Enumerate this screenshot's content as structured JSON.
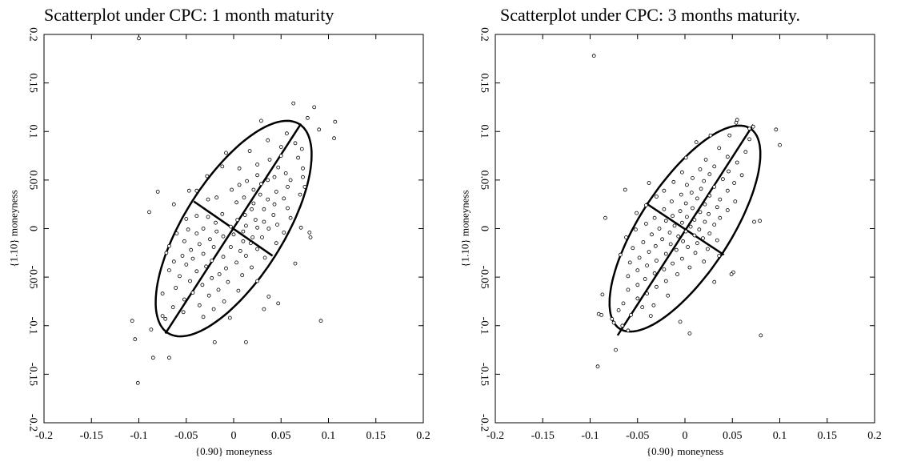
{
  "chart_data": [
    {
      "type": "scatter",
      "title": "Scatterplot under CPC: 1 month maturity",
      "xlabel": "{0.90} moneyness",
      "ylabel": "{1.10} moneyness",
      "xlim": [
        -0.2,
        0.2
      ],
      "ylim": [
        -0.2,
        0.2
      ],
      "xticks": [
        "-0.2",
        "-0.15",
        "-0.1",
        "-0.05",
        "0",
        "0.05",
        "0.1",
        "0.15",
        "0.2"
      ],
      "yticks": [
        "-0.2",
        "-0.15",
        "-0.1",
        "-0.05",
        "0",
        "0.05",
        "0.1",
        "0.15",
        "0.2"
      ],
      "grid": false,
      "ellipse": {
        "center": [
          0.0,
          0.0
        ],
        "axis_angle_deg": 57,
        "major_semi_axis": 0.128,
        "minor_semi_axis": 0.052
      },
      "principal_axes": [
        [
          [
            -0.072,
            -0.108
          ],
          [
            0.071,
            0.108
          ]
        ],
        [
          [
            -0.042,
            0.028
          ],
          [
            0.041,
            -0.028
          ]
        ]
      ],
      "points": [
        [
          -0.1,
          0.196
        ],
        [
          0.063,
          0.129
        ],
        [
          0.085,
          0.125
        ],
        [
          0.078,
          0.114
        ],
        [
          0.029,
          0.111
        ],
        [
          0.107,
          0.11
        ],
        [
          0.09,
          0.102
        ],
        [
          0.056,
          0.098
        ],
        [
          0.106,
          0.093
        ],
        [
          0.065,
          0.088
        ],
        [
          0.036,
          0.091
        ],
        [
          0.05,
          0.084
        ],
        [
          0.072,
          0.082
        ],
        [
          -0.008,
          0.078
        ],
        [
          0.017,
          0.08
        ],
        [
          0.05,
          0.075
        ],
        [
          0.068,
          0.073
        ],
        [
          0.038,
          0.071
        ],
        [
          0.047,
          0.063
        ],
        [
          0.073,
          0.062
        ],
        [
          -0.012,
          0.064
        ],
        [
          0.025,
          0.066
        ],
        [
          0.006,
          0.062
        ],
        [
          0.055,
          0.057
        ],
        [
          0.025,
          0.055
        ],
        [
          0.043,
          0.053
        ],
        [
          0.073,
          0.053
        ],
        [
          0.036,
          0.05
        ],
        [
          0.06,
          0.05
        ],
        [
          0.014,
          0.049
        ],
        [
          -0.028,
          0.054
        ],
        [
          0.006,
          0.045
        ],
        [
          0.029,
          0.046
        ],
        [
          0.057,
          0.043
        ],
        [
          0.075,
          0.043
        ],
        [
          -0.002,
          0.04
        ],
        [
          0.021,
          0.04
        ],
        [
          0.045,
          0.038
        ],
        [
          -0.039,
          0.039
        ],
        [
          -0.047,
          0.039
        ],
        [
          -0.08,
          0.038
        ],
        [
          0.028,
          0.035
        ],
        [
          0.07,
          0.035
        ],
        [
          0.011,
          0.032
        ],
        [
          -0.018,
          0.032
        ],
        [
          0.036,
          0.03
        ],
        [
          0.053,
          0.031
        ],
        [
          -0.027,
          0.03
        ],
        [
          0.003,
          0.027
        ],
        [
          0.021,
          0.026
        ],
        [
          0.043,
          0.025
        ],
        [
          -0.063,
          0.025
        ],
        [
          0.019,
          0.02
        ],
        [
          0.032,
          0.02
        ],
        [
          0.057,
          0.021
        ],
        [
          -0.089,
          0.017
        ],
        [
          -0.012,
          0.015
        ],
        [
          0.012,
          0.014
        ],
        [
          0.042,
          0.014
        ],
        [
          -0.039,
          0.013
        ],
        [
          -0.027,
          0.012
        ],
        [
          0.004,
          0.009
        ],
        [
          0.023,
          0.009
        ],
        [
          0.06,
          0.011
        ],
        [
          -0.05,
          0.01
        ],
        [
          0.032,
          0.007
        ],
        [
          -0.019,
          0.006
        ],
        [
          0.046,
          0.004
        ],
        [
          0.013,
          0.003
        ],
        [
          -0.003,
          0.002
        ],
        [
          0.071,
          0.001
        ],
        [
          -0.032,
          0.0
        ],
        [
          0.025,
          0.001
        ],
        [
          0.037,
          0.0
        ],
        [
          -0.048,
          -0.001
        ],
        [
          0.01,
          -0.003
        ],
        [
          -0.018,
          -0.003
        ],
        [
          0.053,
          -0.004
        ],
        [
          0.08,
          -0.004
        ],
        [
          -0.06,
          -0.005
        ],
        [
          -0.039,
          -0.005
        ],
        [
          0.0,
          -0.006
        ],
        [
          0.02,
          -0.009
        ],
        [
          -0.011,
          -0.008
        ],
        [
          0.03,
          -0.009
        ],
        [
          0.081,
          -0.009
        ],
        [
          -0.025,
          -0.011
        ],
        [
          -0.052,
          -0.013
        ],
        [
          0.01,
          -0.013
        ],
        [
          -0.036,
          -0.016
        ],
        [
          0.018,
          -0.015
        ],
        [
          0.045,
          -0.015
        ],
        [
          -0.068,
          -0.018
        ],
        [
          -0.003,
          -0.019
        ],
        [
          -0.021,
          -0.019
        ],
        [
          0.025,
          -0.021
        ],
        [
          -0.045,
          -0.022
        ],
        [
          0.007,
          -0.023
        ],
        [
          -0.071,
          -0.025
        ],
        [
          -0.032,
          -0.026
        ],
        [
          -0.054,
          -0.028
        ],
        [
          0.013,
          -0.028
        ],
        [
          -0.011,
          -0.029
        ],
        [
          0.033,
          -0.03
        ],
        [
          -0.043,
          -0.031
        ],
        [
          -0.023,
          -0.033
        ],
        [
          -0.063,
          -0.034
        ],
        [
          0.003,
          -0.035
        ],
        [
          0.065,
          -0.036
        ],
        [
          -0.05,
          -0.037
        ],
        [
          -0.029,
          -0.039
        ],
        [
          0.019,
          -0.04
        ],
        [
          -0.008,
          -0.041
        ],
        [
          -0.068,
          -0.043
        ],
        [
          -0.039,
          -0.044
        ],
        [
          -0.015,
          -0.047
        ],
        [
          0.009,
          -0.048
        ],
        [
          -0.057,
          -0.049
        ],
        [
          -0.023,
          -0.051
        ],
        [
          -0.046,
          -0.054
        ],
        [
          -0.006,
          -0.055
        ],
        [
          0.025,
          -0.054
        ],
        [
          -0.033,
          -0.058
        ],
        [
          -0.061,
          -0.061
        ],
        [
          -0.016,
          -0.063
        ],
        [
          0.005,
          -0.064
        ],
        [
          -0.043,
          -0.066
        ],
        [
          -0.075,
          -0.067
        ],
        [
          -0.026,
          -0.069
        ],
        [
          0.037,
          -0.07
        ],
        [
          -0.052,
          -0.073
        ],
        [
          -0.01,
          -0.075
        ],
        [
          0.047,
          -0.077
        ],
        [
          -0.036,
          -0.079
        ],
        [
          -0.064,
          -0.081
        ],
        [
          -0.021,
          -0.083
        ],
        [
          0.032,
          -0.083
        ],
        [
          -0.053,
          -0.086
        ],
        [
          -0.075,
          -0.09
        ],
        [
          -0.032,
          -0.091
        ],
        [
          -0.004,
          -0.092
        ],
        [
          -0.072,
          -0.093
        ],
        [
          -0.107,
          -0.095
        ],
        [
          0.092,
          -0.095
        ],
        [
          -0.087,
          -0.104
        ],
        [
          -0.104,
          -0.114
        ],
        [
          -0.02,
          -0.117
        ],
        [
          0.013,
          -0.117
        ],
        [
          -0.068,
          -0.133
        ],
        [
          -0.085,
          -0.133
        ],
        [
          -0.101,
          -0.159
        ]
      ]
    },
    {
      "type": "scatter",
      "title": "Scatterplot under CPC: 3 months maturity.",
      "xlabel": "{0.90} moneyness",
      "ylabel": "{1.10} moneyness",
      "xlim": [
        -0.2,
        0.2
      ],
      "ylim": [
        -0.2,
        0.2
      ],
      "xticks": [
        "-0.2",
        "-0.15",
        "-0.1",
        "-0.05",
        "0",
        "0.05",
        "0.1",
        "0.15",
        "0.2"
      ],
      "yticks": [
        "-0.2",
        "-0.15",
        "-0.1",
        "-0.05",
        "0",
        "0.05",
        "0.1",
        "0.15",
        "0.2"
      ],
      "grid": false,
      "ellipse": {
        "center": [
          0.0,
          0.0
        ],
        "axis_angle_deg": 56,
        "major_semi_axis": 0.124,
        "minor_semi_axis": 0.047
      },
      "principal_axes": [
        [
          [
            -0.071,
            -0.11
          ],
          [
            0.072,
            0.107
          ]
        ],
        [
          [
            -0.041,
            0.026
          ],
          [
            0.041,
            -0.027
          ]
        ]
      ],
      "points": [
        [
          -0.096,
          0.178
        ],
        [
          0.055,
          0.112
        ],
        [
          0.054,
          0.109
        ],
        [
          0.072,
          0.105
        ],
        [
          0.068,
          0.103
        ],
        [
          0.096,
          0.102
        ],
        [
          0.027,
          0.096
        ],
        [
          0.047,
          0.096
        ],
        [
          0.068,
          0.092
        ],
        [
          0.012,
          0.089
        ],
        [
          0.1,
          0.086
        ],
        [
          0.036,
          0.083
        ],
        [
          0.064,
          0.079
        ],
        [
          0.045,
          0.074
        ],
        [
          0.001,
          0.073
        ],
        [
          0.022,
          0.071
        ],
        [
          0.055,
          0.068
        ],
        [
          0.031,
          0.064
        ],
        [
          0.016,
          0.061
        ],
        [
          0.046,
          0.059
        ],
        [
          -0.003,
          0.058
        ],
        [
          0.026,
          0.056
        ],
        [
          0.06,
          0.055
        ],
        [
          0.008,
          0.052
        ],
        [
          0.04,
          0.051
        ],
        [
          0.02,
          0.049
        ],
        [
          -0.012,
          0.048
        ],
        [
          0.052,
          0.047
        ],
        [
          -0.038,
          0.047
        ],
        [
          0.002,
          0.045
        ],
        [
          0.031,
          0.043
        ],
        [
          0.017,
          0.041
        ],
        [
          -0.063,
          0.04
        ],
        [
          -0.022,
          0.039
        ],
        [
          0.045,
          0.039
        ],
        [
          0.007,
          0.037
        ],
        [
          -0.004,
          0.035
        ],
        [
          0.026,
          0.034
        ],
        [
          -0.03,
          0.033
        ],
        [
          0.013,
          0.031
        ],
        [
          0.037,
          0.03
        ],
        [
          -0.014,
          0.028
        ],
        [
          0.053,
          0.028
        ],
        [
          0.001,
          0.026
        ],
        [
          0.021,
          0.025
        ],
        [
          -0.041,
          0.024
        ],
        [
          0.034,
          0.022
        ],
        [
          0.008,
          0.021
        ],
        [
          -0.022,
          0.02
        ],
        [
          0.045,
          0.019
        ],
        [
          -0.005,
          0.018
        ],
        [
          0.016,
          0.017
        ],
        [
          -0.051,
          0.016
        ],
        [
          0.025,
          0.015
        ],
        [
          -0.013,
          0.013
        ],
        [
          0.002,
          0.012
        ],
        [
          -0.032,
          0.011
        ],
        [
          0.037,
          0.011
        ],
        [
          -0.084,
          0.011
        ],
        [
          0.01,
          0.009
        ],
        [
          -0.02,
          0.008
        ],
        [
          0.021,
          0.007
        ],
        [
          0.073,
          0.007
        ],
        [
          0.079,
          0.008
        ],
        [
          -0.003,
          0.006
        ],
        [
          -0.041,
          0.005
        ],
        [
          0.031,
          0.004
        ],
        [
          -0.011,
          0.003
        ],
        [
          0.006,
          0.002
        ],
        [
          -0.027,
          0.0
        ],
        [
          0.015,
          -0.001
        ],
        [
          -0.052,
          -0.001
        ],
        [
          0.001,
          -0.003
        ],
        [
          -0.016,
          -0.004
        ],
        [
          0.026,
          -0.005
        ],
        [
          -0.035,
          -0.006
        ],
        [
          0.01,
          -0.007
        ],
        [
          -0.007,
          -0.008
        ],
        [
          -0.062,
          -0.009
        ],
        [
          0.019,
          -0.01
        ],
        [
          -0.024,
          -0.011
        ],
        [
          0.034,
          -0.012
        ],
        [
          -0.002,
          -0.013
        ],
        [
          -0.044,
          -0.014
        ],
        [
          0.013,
          -0.015
        ],
        [
          -0.015,
          -0.016
        ],
        [
          -0.031,
          -0.018
        ],
        [
          0.003,
          -0.019
        ],
        [
          -0.055,
          -0.02
        ],
        [
          0.024,
          -0.021
        ],
        [
          -0.009,
          -0.022
        ],
        [
          -0.038,
          -0.024
        ],
        [
          0.011,
          -0.025
        ],
        [
          -0.02,
          -0.026
        ],
        [
          -0.068,
          -0.027
        ],
        [
          0.036,
          -0.028
        ],
        [
          -0.048,
          -0.03
        ],
        [
          -0.003,
          -0.031
        ],
        [
          -0.03,
          -0.033
        ],
        [
          0.02,
          -0.034
        ],
        [
          -0.058,
          -0.035
        ],
        [
          -0.013,
          -0.036
        ],
        [
          -0.04,
          -0.038
        ],
        [
          0.005,
          -0.04
        ],
        [
          -0.022,
          -0.042
        ],
        [
          -0.05,
          -0.043
        ],
        [
          0.051,
          -0.045
        ],
        [
          -0.032,
          -0.046
        ],
        [
          -0.008,
          -0.047
        ],
        [
          0.049,
          -0.047
        ],
        [
          -0.06,
          -0.049
        ],
        [
          -0.042,
          -0.052
        ],
        [
          -0.02,
          -0.054
        ],
        [
          0.031,
          -0.055
        ],
        [
          -0.05,
          -0.058
        ],
        [
          -0.03,
          -0.06
        ],
        [
          -0.06,
          -0.063
        ],
        [
          -0.04,
          -0.067
        ],
        [
          -0.018,
          -0.069
        ],
        [
          -0.087,
          -0.068
        ],
        [
          -0.05,
          -0.072
        ],
        [
          -0.065,
          -0.077
        ],
        [
          -0.033,
          -0.079
        ],
        [
          -0.045,
          -0.081
        ],
        [
          -0.07,
          -0.084
        ],
        [
          -0.091,
          -0.088
        ],
        [
          -0.088,
          -0.089
        ],
        [
          -0.057,
          -0.089
        ],
        [
          -0.036,
          -0.09
        ],
        [
          -0.077,
          -0.093
        ],
        [
          -0.005,
          -0.096
        ],
        [
          -0.075,
          -0.097
        ],
        [
          -0.066,
          -0.1
        ],
        [
          -0.06,
          -0.105
        ],
        [
          0.005,
          -0.108
        ],
        [
          0.08,
          -0.11
        ],
        [
          -0.073,
          -0.125
        ],
        [
          -0.092,
          -0.142
        ]
      ]
    }
  ]
}
